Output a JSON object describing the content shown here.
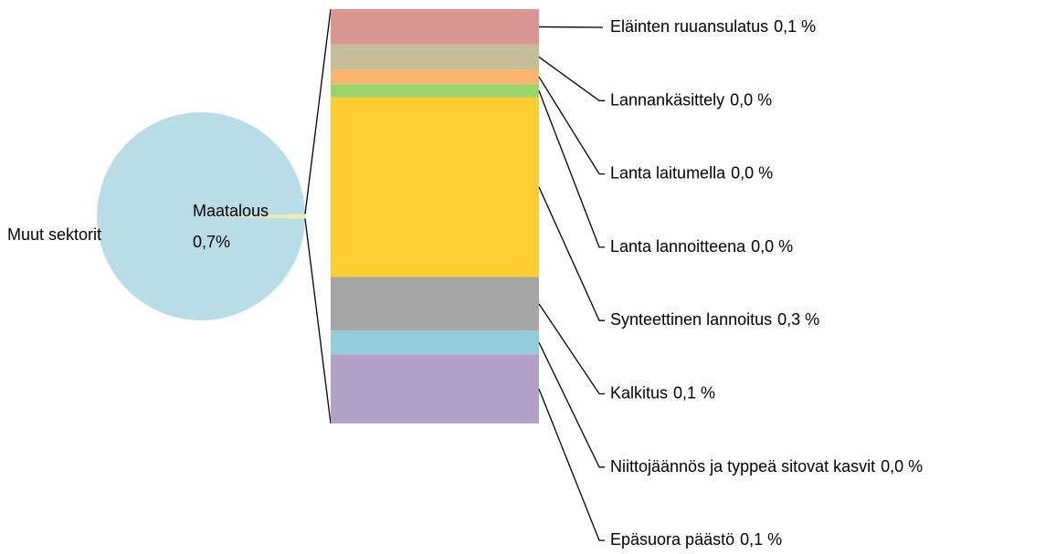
{
  "chart_data": {
    "type": "bar-of-pie",
    "pie": {
      "categories": [
        "Muut sektorit",
        "Maatalous"
      ],
      "values": [
        99.3,
        0.7
      ],
      "value_labels": [
        null,
        "0,7%"
      ],
      "colors": [
        "#b8dde6",
        "#eeeab0"
      ]
    },
    "bar": {
      "categories": [
        "Eläinten ruuansulatus",
        "Lannankäsittely",
        "Lanta laitumella",
        "Lanta lannoitteena",
        "Synteettinen lannoitus",
        "Kalkitus",
        "Niittojäännös ja typpeä sitovat kasvit",
        "Epäsuora päästö"
      ],
      "values": [
        0.06,
        0.042,
        0.025,
        0.022,
        0.304,
        0.091,
        0.04,
        0.117
      ],
      "value_labels": [
        "0,1 %",
        "0,0 %",
        "0,0 %",
        "0,0 %",
        "0,3 %",
        "0,1 %",
        "0,0 %",
        "0,1 %"
      ],
      "colors": [
        "#d99694",
        "#c4bd97",
        "#fab56e",
        "#9bd56a",
        "#fecd33",
        "#a6a6a6",
        "#93cddd",
        "#b3a2c7"
      ]
    }
  }
}
